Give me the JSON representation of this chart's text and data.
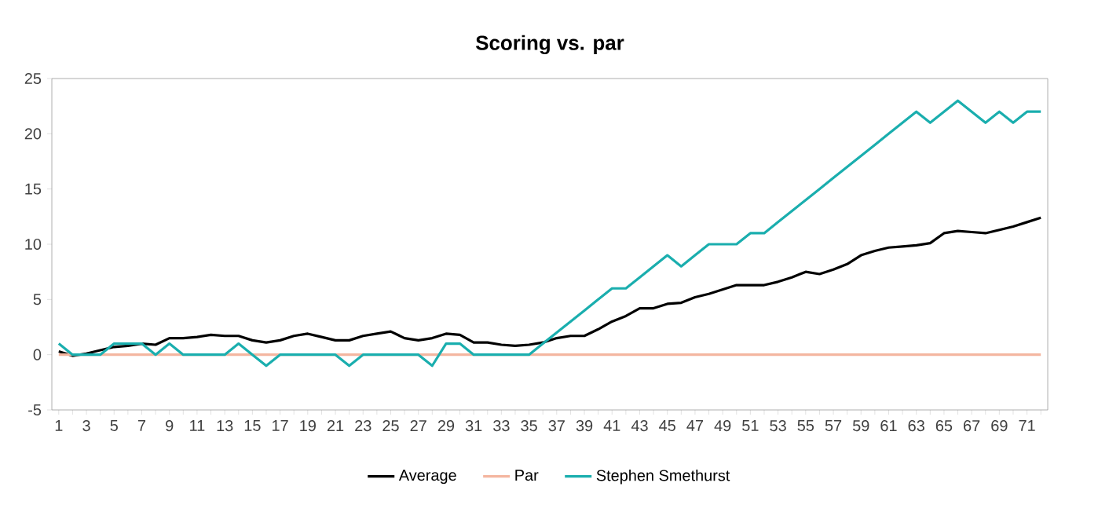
{
  "chart_data": {
    "type": "line",
    "title": "Scoring vs. par",
    "categories": [
      "1",
      null,
      "3",
      null,
      "5",
      null,
      "7",
      null,
      "9",
      null,
      "11",
      null,
      "13",
      null,
      "15",
      null,
      "17",
      null,
      "19",
      null,
      "21",
      null,
      "23",
      null,
      "25",
      null,
      "27",
      null,
      "29",
      null,
      "31",
      null,
      "33",
      null,
      "35",
      null,
      "37",
      null,
      "39",
      null,
      "41",
      null,
      "43",
      null,
      "45",
      null,
      "47",
      null,
      "49",
      null,
      "51",
      null,
      "53",
      null,
      "55",
      null,
      "57",
      null,
      "59",
      null,
      "61",
      null,
      "63",
      null,
      "65",
      null,
      "67",
      null,
      "69",
      null,
      "71",
      null
    ],
    "series": [
      {
        "name": "Average",
        "color": "#000000",
        "values": [
          0.3,
          -0.1,
          0.1,
          0.4,
          0.7,
          0.8,
          1.0,
          0.9,
          1.5,
          1.5,
          1.6,
          1.8,
          1.7,
          1.7,
          1.3,
          1.1,
          1.3,
          1.7,
          1.9,
          1.6,
          1.3,
          1.3,
          1.7,
          1.9,
          2.1,
          1.5,
          1.3,
          1.5,
          1.9,
          1.8,
          1.1,
          1.1,
          0.9,
          0.8,
          0.9,
          1.1,
          1.5,
          1.7,
          1.7,
          2.3,
          3.0,
          3.5,
          4.2,
          4.2,
          4.6,
          4.7,
          5.2,
          5.5,
          5.9,
          6.3,
          6.3,
          6.3,
          6.6,
          7.0,
          7.5,
          7.3,
          7.7,
          8.2,
          9.0,
          9.4,
          9.7,
          9.8,
          9.9,
          10.1,
          11.0,
          11.2,
          11.1,
          11.0,
          11.3,
          11.6,
          12.0,
          12.4
        ]
      },
      {
        "name": "Par",
        "color": "#f4b6a0",
        "values": [
          0,
          0,
          0,
          0,
          0,
          0,
          0,
          0,
          0,
          0,
          0,
          0,
          0,
          0,
          0,
          0,
          0,
          0,
          0,
          0,
          0,
          0,
          0,
          0,
          0,
          0,
          0,
          0,
          0,
          0,
          0,
          0,
          0,
          0,
          0,
          0,
          0,
          0,
          0,
          0,
          0,
          0,
          0,
          0,
          0,
          0,
          0,
          0,
          0,
          0,
          0,
          0,
          0,
          0,
          0,
          0,
          0,
          0,
          0,
          0,
          0,
          0,
          0,
          0,
          0,
          0,
          0,
          0,
          0,
          0,
          0,
          0
        ]
      },
      {
        "name": "Stephen Smethurst",
        "color": "#1aaeae",
        "values": [
          1,
          0,
          0,
          0,
          1,
          1,
          1,
          0,
          1,
          0,
          0,
          0,
          0,
          1,
          0,
          -1,
          0,
          0,
          0,
          0,
          0,
          -1,
          0,
          0,
          0,
          0,
          0,
          -1,
          1,
          1,
          0,
          0,
          0,
          0,
          0,
          1,
          2,
          3,
          4,
          5,
          6,
          6,
          7,
          8,
          9,
          8,
          9,
          10,
          10,
          10,
          11,
          11,
          12,
          13,
          14,
          15,
          16,
          17,
          18,
          19,
          20,
          21,
          22,
          21,
          22,
          23,
          22,
          21,
          22,
          21,
          22,
          22
        ]
      }
    ],
    "ylim": [
      -5,
      25
    ],
    "yticks": [
      -5,
      0,
      5,
      10,
      15,
      20,
      25
    ],
    "grid": false,
    "legend": "bottom",
    "marker": "none",
    "line_style": "solid"
  }
}
